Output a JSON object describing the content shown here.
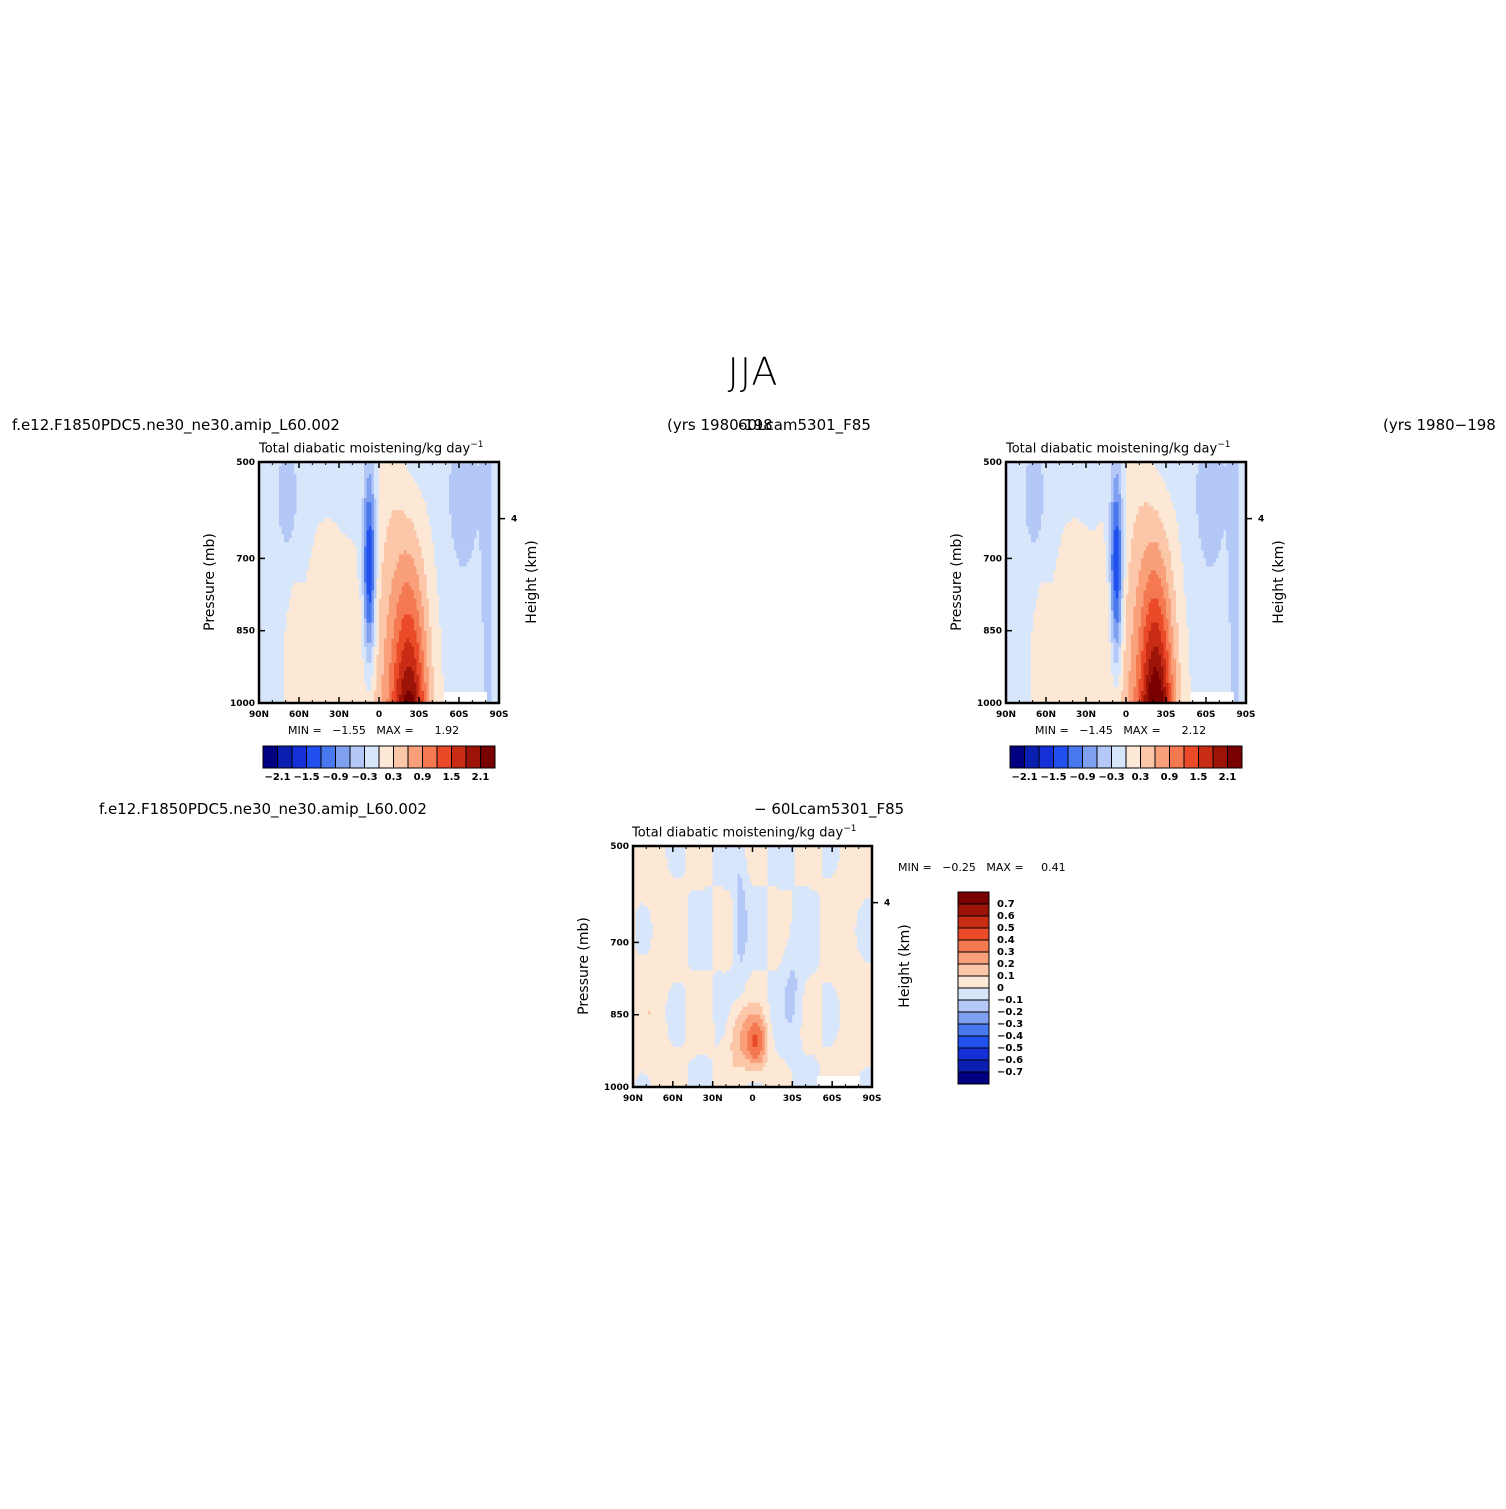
{
  "main_title": "JJA",
  "colors": {
    "palette": [
      "#000080",
      "#0a1fb0",
      "#1530d6",
      "#2050ee",
      "#4878ee",
      "#7fa0f0",
      "#b4c8f8",
      "#d8e6fc",
      "#fde8d6",
      "#fcc6a8",
      "#f9a07a",
      "#f47850",
      "#ea4a28",
      "#c82c14",
      "#9c1408",
      "#780000"
    ]
  },
  "panels": [
    {
      "case_left": "f.e12.F1850PDC5.ne30_ne30.amip_L60.002",
      "case_right": "(yrs  1980-198",
      "title": "Total  diabatic  moistening/kg  day",
      "title_sup": "−1",
      "ylabel": "Pressure  (mb)",
      "ylabel_right": "Height  (km)",
      "min_label": "MIN  =",
      "min_value": "−1.55",
      "max_label": "MAX  =",
      "max_value": "1.92"
    },
    {
      "case_left": "60Lcam5301_F85",
      "case_right": "(yrs  1980−198",
      "title": "Total  diabatic  moistening/kg  day",
      "title_sup": "−1",
      "ylabel": "Pressure  (mb)",
      "ylabel_right": "Height  (km)",
      "min_label": "MIN  =",
      "min_value": "−1.45",
      "max_label": "MAX  =",
      "max_value": "2.12"
    },
    {
      "case_left": "f.e12.F1850PDC5.ne30_ne30.amip_L60.002",
      "case_right": "−  60Lcam5301_F85",
      "title": "Total  diabatic  moistening/kg  day",
      "title_sup": "−1",
      "ylabel": "Pressure  (mb)",
      "ylabel_right": "Height  (km)",
      "min_label": "MIN  =",
      "min_value": "−0.25",
      "max_label": "MAX  =",
      "max_value": "0.41"
    }
  ],
  "chart_data": [
    {
      "type": "heatmap",
      "x_ticks": [
        "90N",
        "60N",
        "30N",
        "0",
        "30S",
        "60S",
        "90S"
      ],
      "y_ticks": [
        "500",
        "700",
        "850",
        "1000"
      ],
      "y_right_ticks": [
        "4"
      ],
      "colorbar_ticks": [
        "−2.1",
        "−1.5",
        "−0.9",
        "−0.3",
        "0.3",
        "0.9",
        "1.5",
        "2.1"
      ],
      "z_min": -1.55,
      "z_max": 1.92
    },
    {
      "type": "heatmap",
      "x_ticks": [
        "90N",
        "60N",
        "30N",
        "0",
        "30S",
        "60S",
        "90S"
      ],
      "y_ticks": [
        "500",
        "700",
        "850",
        "1000"
      ],
      "y_right_ticks": [
        "4"
      ],
      "colorbar_ticks": [
        "−2.1",
        "−1.5",
        "−0.9",
        "−0.3",
        "0.3",
        "0.9",
        "1.5",
        "2.1"
      ],
      "z_min": -1.45,
      "z_max": 2.12
    },
    {
      "type": "heatmap",
      "x_ticks": [
        "90N",
        "60N",
        "30N",
        "0",
        "30S",
        "60S",
        "90S"
      ],
      "y_ticks": [
        "500",
        "700",
        "850",
        "1000"
      ],
      "y_right_ticks": [
        "4"
      ],
      "colorbar_ticks": [
        "0.7",
        "0.6",
        "0.5",
        "0.4",
        "0.3",
        "0.2",
        "0.1",
        "0",
        "−0.1",
        "−0.2",
        "−0.3",
        "−0.4",
        "−0.5",
        "−0.6",
        "−0.7"
      ],
      "z_min": -0.25,
      "z_max": 0.41
    }
  ]
}
